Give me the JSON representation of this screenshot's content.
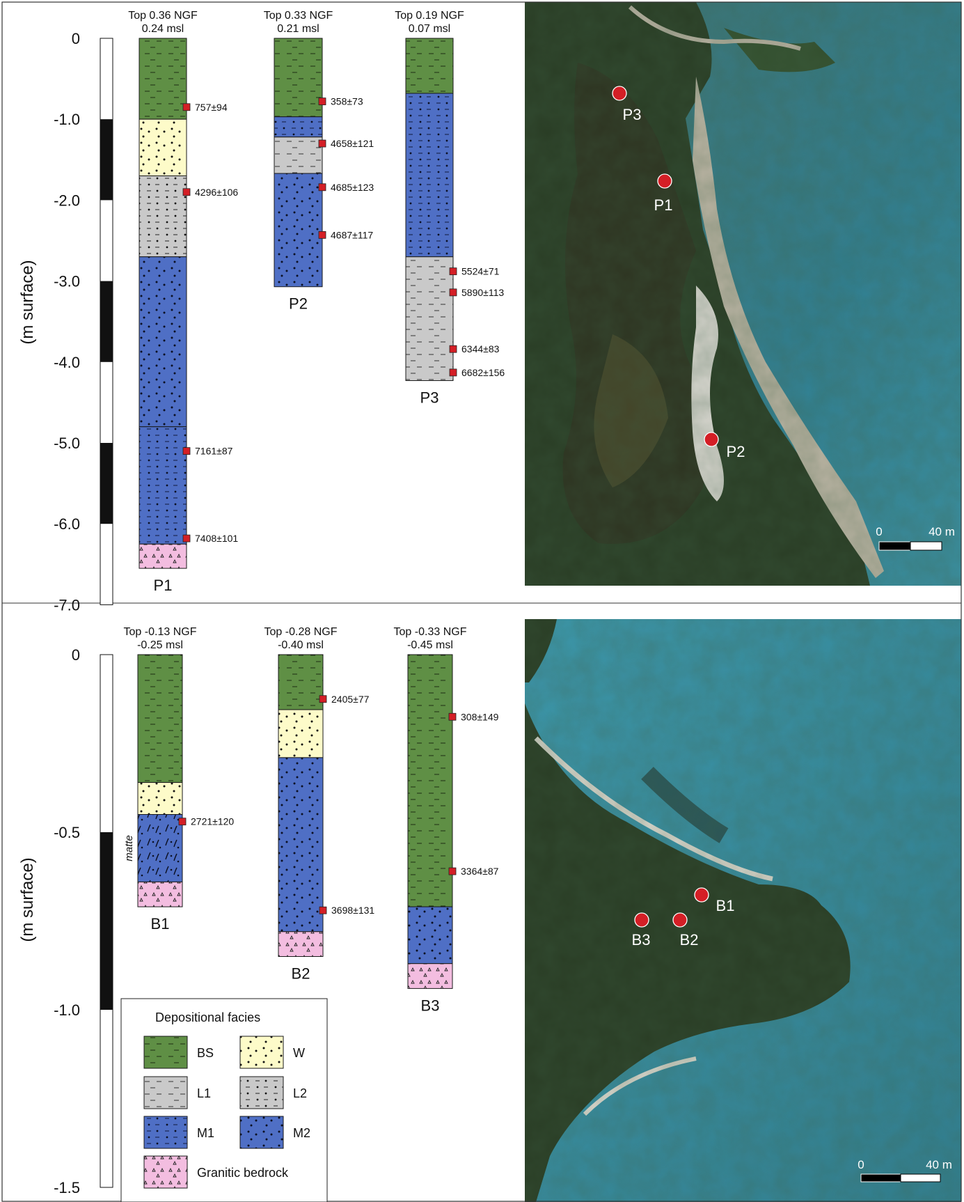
{
  "facies_colors": {
    "BS": "#5f8f45",
    "W": "#fdfbc9",
    "L1": "#c9c9c9",
    "L2": "#c9c9c9",
    "M1": "#4f6fc5",
    "M2": "#4f6fc5",
    "GB": "#f3bde0"
  },
  "marker_color": "#d41f26",
  "panels": {
    "top": {
      "axis": {
        "ylabel": "(m surface)",
        "ticks": [
          {
            "value": 0,
            "label": "0"
          },
          {
            "value": -1,
            "label": "-1.0"
          },
          {
            "value": -2,
            "label": "-2.0"
          },
          {
            "value": -3,
            "label": "-3.0"
          },
          {
            "value": -4,
            "label": "-4.0"
          },
          {
            "value": -5,
            "label": "-5.0"
          },
          {
            "value": -6,
            "label": "-6.0"
          },
          {
            "value": -7,
            "label": "-7.0"
          }
        ]
      },
      "cores": [
        {
          "id": "P1",
          "top_line1": "Top 0.36 NGF",
          "top_line2": "0.24 msl",
          "layers": [
            {
              "facies": "BS",
              "from": 0,
              "to": -1.0
            },
            {
              "facies": "W",
              "from": -1.0,
              "to": -1.7
            },
            {
              "facies": "L2",
              "from": -1.7,
              "to": -2.7
            },
            {
              "facies": "M2",
              "from": -2.7,
              "to": -4.8
            },
            {
              "facies": "M1",
              "from": -4.8,
              "to": -6.25
            },
            {
              "facies": "GB",
              "from": -6.25,
              "to": -6.55
            }
          ],
          "dates": [
            {
              "depth": -0.85,
              "label": "757±94"
            },
            {
              "depth": -1.9,
              "label": "4296±106"
            },
            {
              "depth": -5.1,
              "label": "7161±87"
            },
            {
              "depth": -6.18,
              "label": "7408±101"
            }
          ]
        },
        {
          "id": "P2",
          "top_line1": "Top 0.33 NGF",
          "top_line2": "0.21 msl",
          "layers": [
            {
              "facies": "BS",
              "from": 0,
              "to": -0.97
            },
            {
              "facies": "M1",
              "from": -0.97,
              "to": -1.22
            },
            {
              "facies": "L1",
              "from": -1.22,
              "to": -1.67
            },
            {
              "facies": "M2",
              "from": -1.67,
              "to": -3.07
            }
          ],
          "dates": [
            {
              "depth": -0.78,
              "label": "358±73"
            },
            {
              "depth": -1.3,
              "label": "4658±121"
            },
            {
              "depth": -1.84,
              "label": "4685±123"
            },
            {
              "depth": -2.43,
              "label": "4687±117"
            }
          ]
        },
        {
          "id": "P3",
          "top_line1": "Top 0.19 NGF",
          "top_line2": "0.07 msl",
          "layers": [
            {
              "facies": "BS",
              "from": 0,
              "to": -0.68
            },
            {
              "facies": "M1",
              "from": -0.68,
              "to": -2.7
            },
            {
              "facies": "L1",
              "from": -2.7,
              "to": -4.23
            }
          ],
          "dates": [
            {
              "depth": -2.88,
              "label": "5524±71"
            },
            {
              "depth": -3.14,
              "label": "5890±113"
            },
            {
              "depth": -3.84,
              "label": "6344±83"
            },
            {
              "depth": -4.13,
              "label": "6682±156"
            }
          ]
        }
      ],
      "map": {
        "points": [
          {
            "id": "P3"
          },
          {
            "id": "P1"
          },
          {
            "id": "P2"
          }
        ],
        "scale_left": "0",
        "scale_right": "40 m"
      }
    },
    "bottom": {
      "axis": {
        "ylabel": "(m surface)",
        "ticks": [
          {
            "value": 0,
            "label": "0"
          },
          {
            "value": -0.5,
            "label": "-0.5"
          },
          {
            "value": -1.0,
            "label": "-1.0"
          },
          {
            "value": -1.5,
            "label": "-1.5"
          }
        ]
      },
      "cores": [
        {
          "id": "B1",
          "top_line1": "Top -0.13 NGF",
          "top_line2": "-0.25 msl",
          "annotation": "matte",
          "layers": [
            {
              "facies": "BS",
              "from": 0,
              "to": -0.36
            },
            {
              "facies": "W",
              "from": -0.36,
              "to": -0.45
            },
            {
              "facies": "MATTE",
              "from": -0.45,
              "to": -0.64
            },
            {
              "facies": "GB",
              "from": -0.64,
              "to": -0.71
            }
          ],
          "dates": [
            {
              "depth": -0.47,
              "label": "2721±120"
            }
          ]
        },
        {
          "id": "B2",
          "top_line1": "Top -0.28 NGF",
          "top_line2": "-0.40 msl",
          "layers": [
            {
              "facies": "BS",
              "from": 0,
              "to": -0.155
            },
            {
              "facies": "W",
              "from": -0.155,
              "to": -0.29
            },
            {
              "facies": "M2",
              "from": -0.29,
              "to": -0.78
            },
            {
              "facies": "GB",
              "from": -0.78,
              "to": -0.85
            }
          ],
          "dates": [
            {
              "depth": -0.125,
              "label": "2405±77"
            },
            {
              "depth": -0.72,
              "label": "3698±131"
            }
          ]
        },
        {
          "id": "B3",
          "top_line1": "Top -0.33 NGF",
          "top_line2": "-0.45 msl",
          "layers": [
            {
              "facies": "BS",
              "from": 0,
              "to": -0.71
            },
            {
              "facies": "M2",
              "from": -0.71,
              "to": -0.87
            },
            {
              "facies": "GB",
              "from": -0.87,
              "to": -0.94
            }
          ],
          "dates": [
            {
              "depth": -0.175,
              "label": "308±149"
            },
            {
              "depth": -0.61,
              "label": "3364±87"
            }
          ]
        }
      ],
      "map": {
        "points": [
          {
            "id": "B1"
          },
          {
            "id": "B2"
          },
          {
            "id": "B3"
          }
        ],
        "scale_left": "0",
        "scale_right": "40 m"
      }
    }
  },
  "legend": {
    "title": "Depositional facies",
    "items": [
      {
        "facies": "BS",
        "label": "BS"
      },
      {
        "facies": "W",
        "label": "W"
      },
      {
        "facies": "L1",
        "label": "L1"
      },
      {
        "facies": "L2",
        "label": "L2"
      },
      {
        "facies": "M1",
        "label": "M1"
      },
      {
        "facies": "M2",
        "label": "M2"
      },
      {
        "facies": "GB",
        "label": "Granitic bedrock"
      }
    ]
  }
}
